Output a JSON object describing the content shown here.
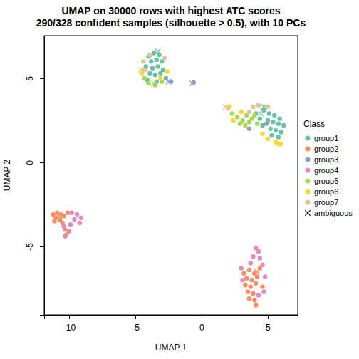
{
  "chart_data": {
    "type": "scatter",
    "title": [
      "UMAP on 30000 rows with highest ATC scores",
      "290/328 confident samples (silhouette > 0.5), with 10 PCs"
    ],
    "x_label": "UMAP 1",
    "y_label": "UMAP 2",
    "legend_title": "Class",
    "legend": "right",
    "xlim": [
      -11.88,
      7.26
    ],
    "ylim": [
      -9.07,
      7.54
    ],
    "xticks": [
      -10,
      -5,
      0,
      5
    ],
    "yticks": [
      -5,
      0,
      5
    ],
    "series": [
      {
        "name": "group1",
        "color": "#66C2A5",
        "marker": "circle",
        "x": [
          -4,
          -3.6,
          -3.2,
          -3.8,
          -3.4,
          -3.0,
          -4.2,
          -3.7,
          -3.3,
          -2.9,
          -3.9,
          -3.5,
          -3.1,
          -2.7,
          -4.1,
          -3.4,
          4.7,
          5.1,
          5.5,
          5.9,
          5.0,
          5.4,
          5.8,
          6.2,
          4.6,
          5.2,
          5.6,
          6.0,
          5.3,
          5.8,
          4.4,
          4.1
        ],
        "values": [
          6.3,
          6.5,
          6.4,
          6.0,
          6.1,
          6.0,
          5.7,
          5.6,
          5.7,
          5.5,
          5.3,
          5.2,
          5.3,
          5.0,
          4.9,
          4.8,
          3.1,
          2.9,
          2.8,
          2.6,
          2.5,
          2.4,
          2.3,
          2.2,
          2.2,
          2.0,
          1.9,
          1.8,
          1.6,
          1.5,
          2.6,
          2.9
        ]
      },
      {
        "name": "group2",
        "color": "#FC8D62",
        "marker": "circle",
        "x": [
          -11.2,
          -10.9,
          -10.6,
          -11.0,
          -10.7,
          -10.4,
          -11.1,
          -10.5,
          -10.3,
          -10.2,
          -10.1,
          3.2,
          3.6,
          4.0,
          3.4,
          3.8,
          4.2,
          3.3,
          3.7,
          4.1,
          3.5,
          3.9,
          3.6,
          4.0,
          4.1,
          4.6,
          4.4
        ],
        "values": [
          -3.1,
          -3.0,
          -3.1,
          -3.3,
          -3.4,
          -3.2,
          -3.5,
          -3.6,
          -4.0,
          -4.3,
          -3.0,
          -6.6,
          -6.4,
          -6.6,
          -6.9,
          -7.0,
          -6.8,
          -7.3,
          -7.4,
          -7.2,
          -7.7,
          -7.8,
          -8.1,
          -8.2,
          -8.5,
          -7.4,
          -6.3
        ]
      },
      {
        "name": "group3",
        "color": "#8DA0CB",
        "marker": "circle",
        "x": [
          -0.6,
          -2.3,
          3.6,
          4.9
        ],
        "values": [
          4.75,
          4.8,
          2.0,
          2.3
        ]
      },
      {
        "name": "group4",
        "color": "#E78AC3",
        "marker": "circle",
        "x": [
          -9.8,
          -9.4,
          -9.1,
          -9.6,
          -9.2,
          -9.9,
          -10.3,
          -10.0,
          -10.4,
          4.1,
          4.3,
          3.9,
          4.4,
          3.7,
          4.6,
          3.0,
          4.8,
          4.7,
          3.1,
          4.3
        ],
        "values": [
          -3.0,
          -3.1,
          -3.3,
          -3.4,
          -3.6,
          -3.7,
          -4.4,
          -4.1,
          -3.8,
          -5.1,
          -5.3,
          -5.6,
          -5.7,
          -6.0,
          -6.1,
          -6.3,
          -6.8,
          -7.7,
          -7.0,
          -7.9
        ]
      },
      {
        "name": "group5",
        "color": "#A6D854",
        "marker": "circle",
        "x": [
          -4.0,
          -3.5,
          -3.0,
          -4.3,
          2.3,
          2.7,
          3.1,
          3.4,
          3.8,
          2.9,
          3.3,
          4.2,
          3.6,
          4.0
        ],
        "values": [
          4.7,
          4.6,
          4.8,
          5.0,
          2.9,
          2.7,
          2.5,
          2.8,
          2.6,
          2.3,
          2.2,
          2.3,
          2.4,
          2.8
        ]
      },
      {
        "name": "group6",
        "color": "#FFD92F",
        "marker": "circle",
        "x": [
          -2.6,
          -3.1,
          -4.5,
          2.4,
          3.0,
          4.6,
          5.8,
          6.0,
          5.6,
          2.1,
          5.0
        ],
        "values": [
          5.4,
          5.0,
          5.3,
          2.5,
          3.0,
          1.7,
          1.1,
          1.1,
          1.2,
          3.3,
          1.4
        ]
      },
      {
        "name": "group7",
        "color": "#E5C494",
        "marker": "circle",
        "x": [
          -4.4,
          -3.9,
          -4.3,
          -2.8,
          2.0,
          3.9,
          4.3,
          3.6,
          5.0
        ],
        "values": [
          6.0,
          6.4,
          5.5,
          6.2,
          3.2,
          3.3,
          3.4,
          3.0,
          3.3
        ]
      },
      {
        "name": "ambiguous",
        "color": "#000000",
        "marker": "x",
        "x": [
          -3.3,
          -2.5,
          -4.6,
          1.8,
          4.7,
          4.5,
          -10.8,
          4.2,
          -3.6,
          -0.7
        ],
        "values": [
          6.6,
          4.8,
          5.5,
          3.3,
          3.3,
          2.9,
          -3.2,
          -6.5,
          4.7,
          4.7
        ],
        "colors": [
          "#66C2A5",
          "#8DA0CB",
          "#E5C494",
          "#E5C494",
          "#66C2A5",
          "#66C2A5",
          "#FC8D62",
          "#FC8D62",
          "#A6D854",
          "#8DA0CB"
        ]
      }
    ]
  }
}
